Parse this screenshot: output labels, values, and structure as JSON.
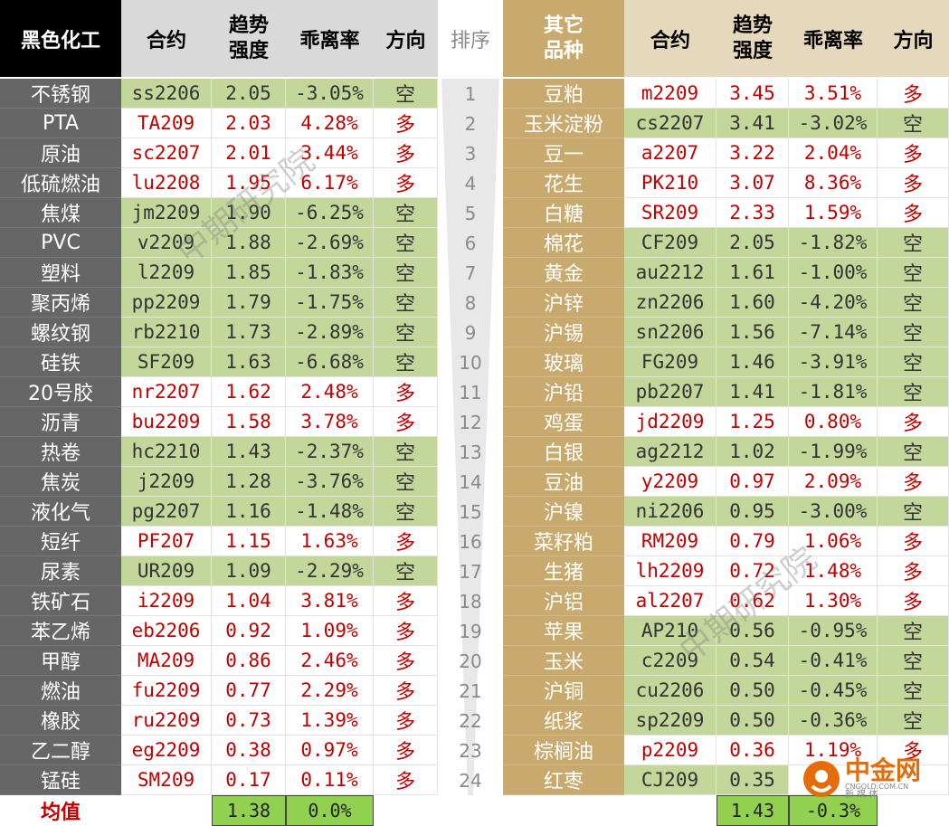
{
  "headers": {
    "left_category": "黑色化工",
    "contract": "合约",
    "strength_line1": "趋势",
    "strength_line2": "强度",
    "deviation": "乖离率",
    "direction": "方向",
    "rank": "排序",
    "right_category_line1": "其它",
    "right_category_line2": "品种"
  },
  "left_rows": [
    {
      "name": "不锈钢",
      "code": "ss2206",
      "strength": "2.05",
      "dev": "-3.05%",
      "dir": "空"
    },
    {
      "name": "PTA",
      "code": "TA209",
      "strength": "2.03",
      "dev": "4.28%",
      "dir": "多"
    },
    {
      "name": "原油",
      "code": "sc2207",
      "strength": "2.01",
      "dev": "3.44%",
      "dir": "多"
    },
    {
      "name": "低硫燃油",
      "code": "lu2208",
      "strength": "1.95",
      "dev": "6.17%",
      "dir": "多"
    },
    {
      "name": "焦煤",
      "code": "jm2209",
      "strength": "1.90",
      "dev": "-6.25%",
      "dir": "空"
    },
    {
      "name": "PVC",
      "code": "v2209",
      "strength": "1.88",
      "dev": "-2.69%",
      "dir": "空"
    },
    {
      "name": "塑料",
      "code": "l2209",
      "strength": "1.85",
      "dev": "-1.83%",
      "dir": "空"
    },
    {
      "name": "聚丙烯",
      "code": "pp2209",
      "strength": "1.79",
      "dev": "-1.75%",
      "dir": "空"
    },
    {
      "name": "螺纹钢",
      "code": "rb2210",
      "strength": "1.73",
      "dev": "-2.89%",
      "dir": "空"
    },
    {
      "name": "硅铁",
      "code": "SF209",
      "strength": "1.63",
      "dev": "-6.68%",
      "dir": "空"
    },
    {
      "name": "20号胶",
      "code": "nr2207",
      "strength": "1.62",
      "dev": "2.48%",
      "dir": "多"
    },
    {
      "name": "沥青",
      "code": "bu2209",
      "strength": "1.58",
      "dev": "3.78%",
      "dir": "多"
    },
    {
      "name": "热卷",
      "code": "hc2210",
      "strength": "1.43",
      "dev": "-2.37%",
      "dir": "空"
    },
    {
      "name": "焦炭",
      "code": "j2209",
      "strength": "1.28",
      "dev": "-3.76%",
      "dir": "空"
    },
    {
      "name": "液化气",
      "code": "pg2207",
      "strength": "1.16",
      "dev": "-1.48%",
      "dir": "空"
    },
    {
      "name": "短纤",
      "code": "PF207",
      "strength": "1.15",
      "dev": "1.63%",
      "dir": "多"
    },
    {
      "name": "尿素",
      "code": "UR209",
      "strength": "1.09",
      "dev": "-2.29%",
      "dir": "空"
    },
    {
      "name": "铁矿石",
      "code": "i2209",
      "strength": "1.04",
      "dev": "3.81%",
      "dir": "多"
    },
    {
      "name": "苯乙烯",
      "code": "eb2206",
      "strength": "0.92",
      "dev": "1.09%",
      "dir": "多"
    },
    {
      "name": "甲醇",
      "code": "MA209",
      "strength": "0.86",
      "dev": "2.46%",
      "dir": "多"
    },
    {
      "name": "燃油",
      "code": "fu2209",
      "strength": "0.77",
      "dev": "2.29%",
      "dir": "多"
    },
    {
      "name": "橡胶",
      "code": "ru2209",
      "strength": "0.73",
      "dev": "1.39%",
      "dir": "多"
    },
    {
      "name": "乙二醇",
      "code": "eg2209",
      "strength": "0.38",
      "dev": "0.97%",
      "dir": "多"
    },
    {
      "name": "锰硅",
      "code": "SM209",
      "strength": "0.17",
      "dev": "0.11%",
      "dir": "多"
    }
  ],
  "ranks": [
    "1",
    "2",
    "3",
    "4",
    "5",
    "6",
    "7",
    "8",
    "9",
    "10",
    "11",
    "12",
    "13",
    "14",
    "15",
    "16",
    "17",
    "18",
    "19",
    "20",
    "21",
    "22",
    "23",
    "24"
  ],
  "right_rows": [
    {
      "name": "豆粕",
      "code": "m2209",
      "strength": "3.45",
      "dev": "3.51%",
      "dir": "多"
    },
    {
      "name": "玉米淀粉",
      "code": "cs2207",
      "strength": "3.41",
      "dev": "-3.02%",
      "dir": "空"
    },
    {
      "name": "豆一",
      "code": "a2207",
      "strength": "3.22",
      "dev": "2.04%",
      "dir": "多"
    },
    {
      "name": "花生",
      "code": "PK210",
      "strength": "3.07",
      "dev": "8.36%",
      "dir": "多"
    },
    {
      "name": "白糖",
      "code": "SR209",
      "strength": "2.33",
      "dev": "1.59%",
      "dir": "多"
    },
    {
      "name": "棉花",
      "code": "CF209",
      "strength": "2.05",
      "dev": "-1.82%",
      "dir": "空"
    },
    {
      "name": "黄金",
      "code": "au2212",
      "strength": "1.61",
      "dev": "-1.00%",
      "dir": "空"
    },
    {
      "name": "沪锌",
      "code": "zn2206",
      "strength": "1.60",
      "dev": "-4.20%",
      "dir": "空"
    },
    {
      "name": "沪锡",
      "code": "sn2206",
      "strength": "1.56",
      "dev": "-7.14%",
      "dir": "空"
    },
    {
      "name": "玻璃",
      "code": "FG209",
      "strength": "1.46",
      "dev": "-3.91%",
      "dir": "空"
    },
    {
      "name": "沪铅",
      "code": "pb2207",
      "strength": "1.41",
      "dev": "-1.81%",
      "dir": "空"
    },
    {
      "name": "鸡蛋",
      "code": "jd2209",
      "strength": "1.25",
      "dev": "0.80%",
      "dir": "多"
    },
    {
      "name": "白银",
      "code": "ag2212",
      "strength": "1.02",
      "dev": "-1.99%",
      "dir": "空"
    },
    {
      "name": "豆油",
      "code": "y2209",
      "strength": "0.97",
      "dev": "2.09%",
      "dir": "多"
    },
    {
      "name": "沪镍",
      "code": "ni2206",
      "strength": "0.95",
      "dev": "-3.00%",
      "dir": "空"
    },
    {
      "name": "菜籽粕",
      "code": "RM209",
      "strength": "0.79",
      "dev": "1.06%",
      "dir": "多"
    },
    {
      "name": "生猪",
      "code": "lh2209",
      "strength": "0.72",
      "dev": "1.48%",
      "dir": "多"
    },
    {
      "name": "沪铝",
      "code": "al2207",
      "strength": "0.62",
      "dev": "1.30%",
      "dir": "多"
    },
    {
      "name": "苹果",
      "code": "AP210",
      "strength": "0.56",
      "dev": "-0.95%",
      "dir": "空"
    },
    {
      "name": "玉米",
      "code": "c2209",
      "strength": "0.54",
      "dev": "-0.41%",
      "dir": "空"
    },
    {
      "name": "沪铜",
      "code": "cu2206",
      "strength": "0.50",
      "dev": "-0.45%",
      "dir": "空"
    },
    {
      "name": "纸浆",
      "code": "sp2209",
      "strength": "0.50",
      "dev": "-0.36%",
      "dir": "空"
    },
    {
      "name": "棕榈油",
      "code": "p2209",
      "strength": "0.36",
      "dev": "1.19%",
      "dir": "多"
    },
    {
      "name": "红枣",
      "code": "CJ209",
      "strength": "0.35",
      "dev": "",
      "dir": ""
    }
  ],
  "averages": {
    "label": "均值",
    "left_strength": "1.38",
    "left_dev": "0.0%",
    "right_strength": "1.43",
    "right_dev": "-0.3%"
  },
  "watermark": "中期研究院",
  "logo": {
    "text": "中金网",
    "sub": "新 媒 体",
    "url": "CNGOLD.COM.CN"
  },
  "colors": {
    "long": "#c00000",
    "short_bg": "#c4d79b",
    "avg_bg": "#92d050",
    "left_header": "#000000",
    "right_header": "#c8aa6e",
    "left_name_bg": "#666666"
  }
}
